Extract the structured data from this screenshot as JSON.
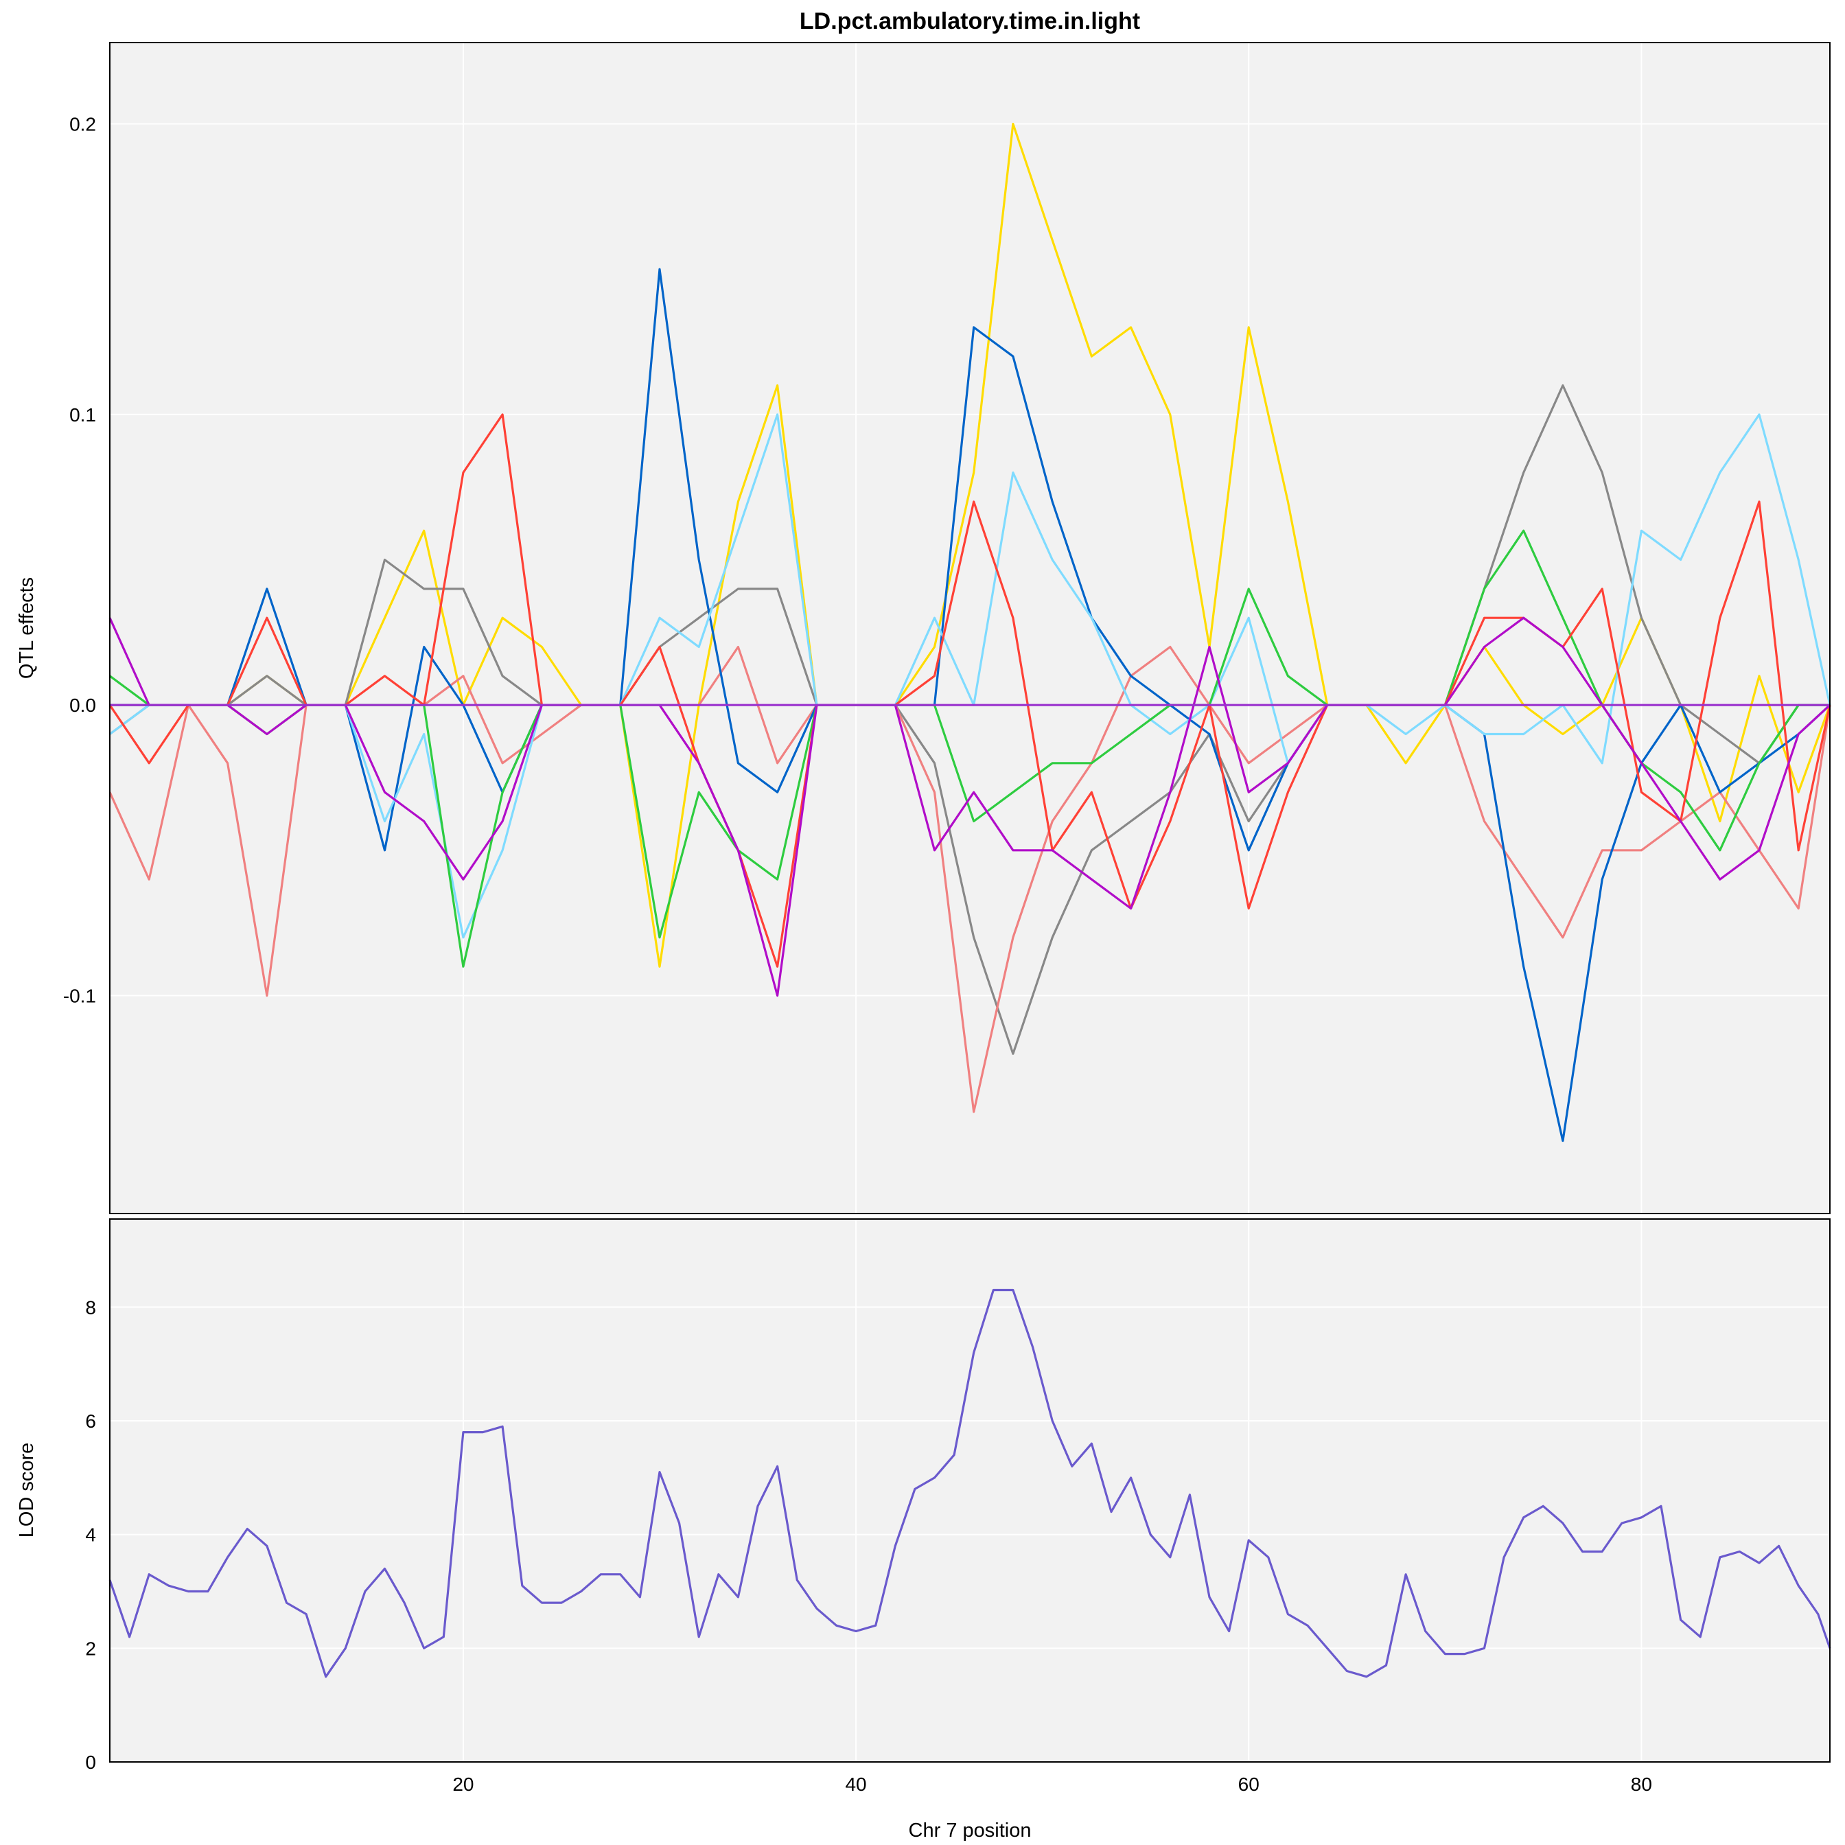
{
  "chart_data": [
    {
      "type": "line",
      "panel": "effects",
      "title": "LD.pct.ambulatory.time.in.light",
      "xlabel": "",
      "ylabel": "QTL effects",
      "xlim": [
        2,
        89.6
      ],
      "ylim": [
        -0.175,
        0.228
      ],
      "yticks": [
        -0.1,
        0.0,
        0.1,
        0.2
      ],
      "ytick_labels": [
        "-0.1",
        "0.0",
        "0.1",
        "0.2"
      ],
      "xticks": [
        20,
        40,
        60,
        80
      ],
      "grid": true,
      "legend": "none",
      "x": [
        2,
        4,
        6,
        8,
        10,
        12,
        14,
        16,
        18,
        20,
        22,
        24,
        26,
        28,
        30,
        32,
        34,
        36,
        38,
        40,
        42,
        44,
        46,
        48,
        50,
        52,
        54,
        56,
        58,
        60,
        62,
        64,
        66,
        68,
        70,
        72,
        74,
        76,
        78,
        80,
        82,
        84,
        86,
        88,
        89.6
      ],
      "series": [
        {
          "color": "#FFDC00",
          "values": [
            0.0,
            0.0,
            0.0,
            0.0,
            0.01,
            0.0,
            0.0,
            0.03,
            0.06,
            0.0,
            0.03,
            0.02,
            0.0,
            0.0,
            -0.09,
            0.0,
            0.07,
            0.11,
            0.0,
            0.0,
            0.0,
            0.02,
            0.08,
            0.2,
            0.16,
            0.12,
            0.13,
            0.1,
            0.02,
            0.13,
            0.07,
            0.0,
            0.0,
            -0.02,
            0.0,
            0.02,
            0.0,
            -0.01,
            0.0,
            0.03,
            0.0,
            -0.04,
            0.01,
            -0.03,
            0.0
          ]
        },
        {
          "color": "#888888",
          "values": [
            -0.01,
            0.0,
            0.0,
            0.0,
            0.01,
            0.0,
            0.0,
            0.05,
            0.04,
            0.04,
            0.01,
            0.0,
            0.0,
            0.0,
            0.02,
            0.03,
            0.04,
            0.04,
            0.0,
            0.0,
            0.0,
            -0.02,
            -0.08,
            -0.12,
            -0.08,
            -0.05,
            -0.04,
            -0.03,
            -0.01,
            -0.04,
            -0.02,
            0.0,
            0.0,
            0.0,
            0.0,
            0.04,
            0.08,
            0.11,
            0.08,
            0.03,
            0.0,
            -0.01,
            -0.02,
            0.0,
            0.0
          ]
        },
        {
          "color": "#F08080",
          "values": [
            -0.03,
            -0.06,
            0.0,
            -0.02,
            -0.1,
            0.0,
            0.0,
            0.0,
            0.0,
            0.01,
            -0.02,
            -0.01,
            0.0,
            0.0,
            0.0,
            0.0,
            0.02,
            -0.02,
            0.0,
            0.0,
            0.0,
            -0.03,
            -0.14,
            -0.08,
            -0.04,
            -0.02,
            0.01,
            0.02,
            0.0,
            -0.02,
            -0.01,
            0.0,
            0.0,
            0.0,
            0.0,
            -0.04,
            -0.06,
            -0.08,
            -0.05,
            -0.05,
            -0.04,
            -0.03,
            -0.05,
            -0.07,
            0.0
          ]
        },
        {
          "color": "#0064C9",
          "values": [
            0.0,
            0.0,
            0.0,
            0.0,
            0.04,
            0.0,
            0.0,
            -0.05,
            0.02,
            0.0,
            -0.03,
            0.0,
            0.0,
            0.0,
            0.15,
            0.05,
            -0.02,
            -0.03,
            0.0,
            0.0,
            0.0,
            0.0,
            0.13,
            0.12,
            0.07,
            0.03,
            0.01,
            0.0,
            -0.01,
            -0.05,
            -0.02,
            0.0,
            0.0,
            0.0,
            0.0,
            -0.01,
            -0.09,
            -0.15,
            -0.06,
            -0.02,
            0.0,
            -0.03,
            -0.02,
            -0.01,
            0.0
          ]
        },
        {
          "color": "#7FDBFF",
          "values": [
            -0.01,
            0.0,
            0.0,
            0.0,
            0.0,
            0.0,
            0.0,
            -0.04,
            -0.01,
            -0.08,
            -0.05,
            0.0,
            0.0,
            0.0,
            0.03,
            0.02,
            0.06,
            0.1,
            0.0,
            0.0,
            0.0,
            0.03,
            0.0,
            0.08,
            0.05,
            0.03,
            0.0,
            -0.01,
            0.0,
            0.03,
            -0.02,
            0.0,
            0.0,
            -0.01,
            0.0,
            -0.01,
            -0.01,
            0.0,
            -0.02,
            0.06,
            0.05,
            0.08,
            0.1,
            0.05,
            0.0
          ]
        },
        {
          "color": "#2ECC40",
          "values": [
            0.01,
            0.0,
            0.0,
            0.0,
            -0.01,
            0.0,
            0.0,
            0.0,
            0.0,
            -0.09,
            -0.03,
            0.0,
            0.0,
            0.0,
            -0.08,
            -0.03,
            -0.05,
            -0.06,
            0.0,
            0.0,
            0.0,
            0.0,
            -0.04,
            -0.03,
            -0.02,
            -0.02,
            -0.01,
            0.0,
            0.0,
            0.04,
            0.01,
            0.0,
            0.0,
            0.0,
            0.0,
            0.04,
            0.06,
            0.03,
            0.0,
            -0.02,
            -0.03,
            -0.05,
            -0.02,
            0.0,
            0.0
          ]
        },
        {
          "color": "#FF4136",
          "values": [
            0.0,
            -0.02,
            0.0,
            0.0,
            0.03,
            0.0,
            0.0,
            0.01,
            0.0,
            0.08,
            0.1,
            0.0,
            0.0,
            0.0,
            0.02,
            -0.02,
            -0.05,
            -0.09,
            0.0,
            0.0,
            0.0,
            0.01,
            0.07,
            0.03,
            -0.05,
            -0.03,
            -0.07,
            -0.04,
            0.0,
            -0.07,
            -0.03,
            0.0,
            0.0,
            0.0,
            0.0,
            0.03,
            0.03,
            0.02,
            0.04,
            -0.03,
            -0.04,
            0.03,
            0.07,
            -0.05,
            0.0
          ]
        },
        {
          "color": "#B10DC9",
          "values": [
            0.03,
            0.0,
            0.0,
            0.0,
            -0.01,
            0.0,
            0.0,
            -0.03,
            -0.04,
            -0.06,
            -0.04,
            0.0,
            0.0,
            0.0,
            0.0,
            -0.02,
            -0.05,
            -0.1,
            0.0,
            0.0,
            0.0,
            -0.05,
            -0.03,
            -0.05,
            -0.05,
            -0.06,
            -0.07,
            -0.03,
            0.02,
            -0.03,
            -0.02,
            0.0,
            0.0,
            0.0,
            0.0,
            0.02,
            0.03,
            0.02,
            0.0,
            -0.02,
            -0.04,
            -0.06,
            -0.05,
            -0.01,
            0.0
          ]
        },
        {
          "color": "#9A32CD",
          "values": [
            0.0,
            0.0,
            0.0,
            0.0,
            0.0,
            0.0,
            0.0,
            0.0,
            0.0,
            0.0,
            0.0,
            0.0,
            0.0,
            0.0,
            0.0,
            0.0,
            0.0,
            0.0,
            0.0,
            0.0,
            0.0,
            0.0,
            0.0,
            0.0,
            0.0,
            0.0,
            0.0,
            0.0,
            0.0,
            0.0,
            0.0,
            0.0,
            0.0,
            0.0,
            0.0,
            0.0,
            0.0,
            0.0,
            0.0,
            0.0,
            0.0,
            0.0,
            0.0,
            0.0,
            0.0
          ]
        }
      ]
    },
    {
      "type": "line",
      "panel": "lod",
      "title": "",
      "xlabel": "Chr 7 position",
      "ylabel": "LOD score",
      "xlim": [
        2,
        89.6
      ],
      "ylim": [
        0,
        9.55
      ],
      "yticks": [
        0,
        2,
        4,
        6,
        8
      ],
      "ytick_labels": [
        "0",
        "2",
        "4",
        "6",
        "8"
      ],
      "xticks": [
        20,
        40,
        60,
        80
      ],
      "xtick_labels": [
        "20",
        "40",
        "60",
        "80"
      ],
      "grid": true,
      "legend": "none",
      "x": [
        2,
        3,
        4,
        5,
        6,
        7,
        8,
        9,
        10,
        11,
        12,
        13,
        14,
        15,
        16,
        17,
        18,
        19,
        20,
        21,
        22,
        23,
        24,
        25,
        26,
        27,
        28,
        29,
        30,
        31,
        32,
        33,
        34,
        35,
        36,
        37,
        38,
        39,
        40,
        41,
        42,
        43,
        44,
        45,
        46,
        47,
        48,
        49,
        50,
        51,
        52,
        53,
        54,
        55,
        56,
        57,
        58,
        59,
        60,
        61,
        62,
        63,
        64,
        65,
        66,
        67,
        68,
        69,
        70,
        71,
        72,
        73,
        74,
        75,
        76,
        77,
        78,
        79,
        80,
        81,
        82,
        83,
        84,
        85,
        86,
        87,
        88,
        89,
        89.6
      ],
      "series": [
        {
          "color": "#6A5ACD",
          "values": [
            3.2,
            2.2,
            3.3,
            3.1,
            3.0,
            3.0,
            3.6,
            4.1,
            3.8,
            2.8,
            2.6,
            1.5,
            2.0,
            3.0,
            3.4,
            2.8,
            2.0,
            2.2,
            5.8,
            5.8,
            5.9,
            3.1,
            2.8,
            2.8,
            3.0,
            3.3,
            3.3,
            2.9,
            5.1,
            4.2,
            2.2,
            3.3,
            2.9,
            4.5,
            5.2,
            3.2,
            2.7,
            2.4,
            2.3,
            2.4,
            3.8,
            4.8,
            5.0,
            5.4,
            7.2,
            8.3,
            8.3,
            7.3,
            6.0,
            5.2,
            5.6,
            4.4,
            5.0,
            4.0,
            3.6,
            4.7,
            2.9,
            2.3,
            3.9,
            3.6,
            2.6,
            2.4,
            2.0,
            1.6,
            1.5,
            1.7,
            3.3,
            2.3,
            1.9,
            1.9,
            2.0,
            3.6,
            4.3,
            4.5,
            4.2,
            3.7,
            3.7,
            4.2,
            4.3,
            4.5,
            2.5,
            2.2,
            3.6,
            3.7,
            3.5,
            3.8,
            3.1,
            2.6,
            2.0
          ]
        }
      ]
    }
  ]
}
